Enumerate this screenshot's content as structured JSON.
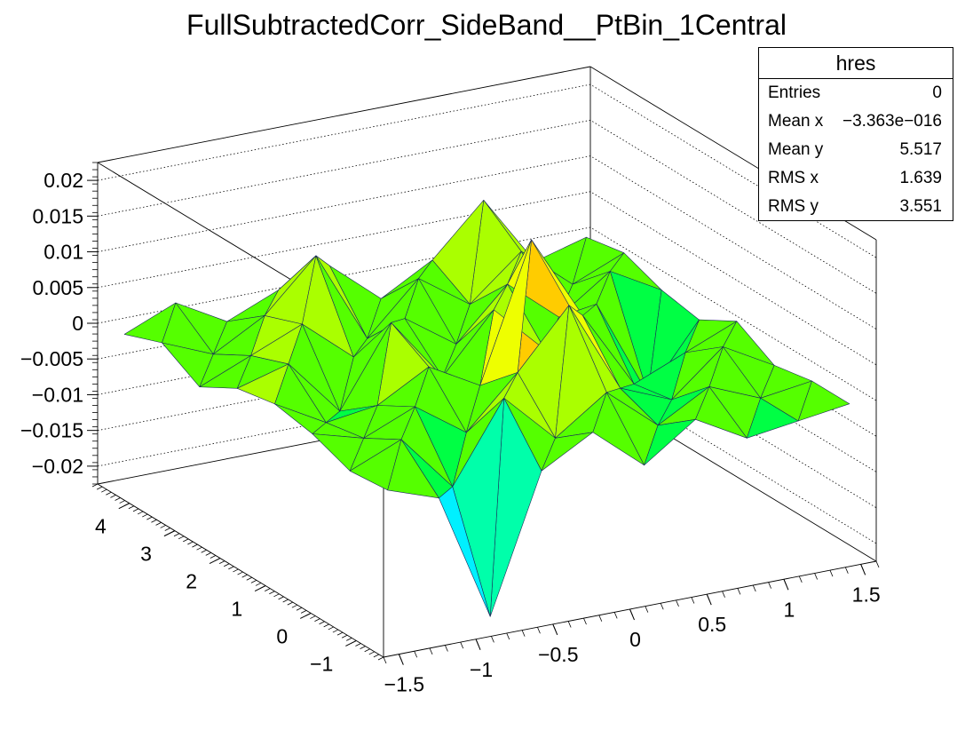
{
  "chart_data": {
    "type": "surface3d",
    "title": "FullSubtractedCorr_SideBand__PtBin_1Central",
    "x_ticks": [
      "−1.5",
      "−1",
      "−0.5",
      "0",
      "0.5",
      "1",
      "1.5"
    ],
    "y_ticks": [
      "−1",
      "0",
      "1",
      "2",
      "3",
      "4"
    ],
    "z_ticks": [
      "−0.02",
      "−0.015",
      "−0.01",
      "−0.005",
      "0",
      "0.005",
      "0.01",
      "0.015",
      "0.02"
    ],
    "xlim": [
      -1.6,
      1.6
    ],
    "ylim": [
      -1.6,
      4.7
    ],
    "zlim": [
      -0.0225,
      0.0225
    ],
    "palette": [
      "#5a00ff",
      "#0033ff",
      "#0099ff",
      "#00f0ff",
      "#00ffaa",
      "#00ff44",
      "#55ff00",
      "#aaff00",
      "#eeff00",
      "#ffcc00",
      "#ff8800",
      "#ff3300",
      "#ff0000"
    ],
    "grid": [
      [
        -0.0005,
        -0.003,
        -0.021,
        -0.002,
        0.002,
        -0.004,
        0.001,
        -0.003,
        -0.002,
        -0.001
      ],
      [
        -0.001,
        0.002,
        -0.006,
        0.005,
        -0.002,
        0.003,
        -0.003,
        0.001,
        -0.002,
        -0.001
      ],
      [
        0.001,
        -0.001,
        0.002,
        -0.003,
        0.004,
        0.012,
        -0.001,
        -0.004,
        0.002,
        -0.002
      ],
      [
        0.002,
        -0.002,
        -0.001,
        0.003,
        -0.001,
        0.018,
        0.006,
        -0.005,
        -0.002,
        0.001
      ],
      [
        0.001,
        0.003,
        -0.005,
        0.006,
        -0.003,
        0.005,
        -0.002,
        0.003,
        -0.011,
        -0.002
      ],
      [
        -0.002,
        0.001,
        0.004,
        -0.002,
        0.002,
        -0.003,
        0.004,
        -0.002,
        0.003,
        -0.001
      ],
      [
        0.001,
        -0.002,
        0.002,
        0.009,
        -0.004,
        0.003,
        -0.002,
        0.004,
        -0.002,
        0.001
      ],
      [
        -0.001,
        0.002,
        -0.002,
        0.001,
        0.003,
        -0.003,
        0.001,
        0.008,
        -0.002,
        0.0
      ]
    ]
  },
  "stats_box": {
    "name": "hres",
    "rows": [
      {
        "label": "Entries",
        "value": "0"
      },
      {
        "label": "Mean x",
        "value": "−3.363e−016"
      },
      {
        "label": "Mean y",
        "value": "5.517"
      },
      {
        "label": "RMS x",
        "value": "1.639"
      },
      {
        "label": "RMS y",
        "value": "3.551"
      }
    ]
  }
}
